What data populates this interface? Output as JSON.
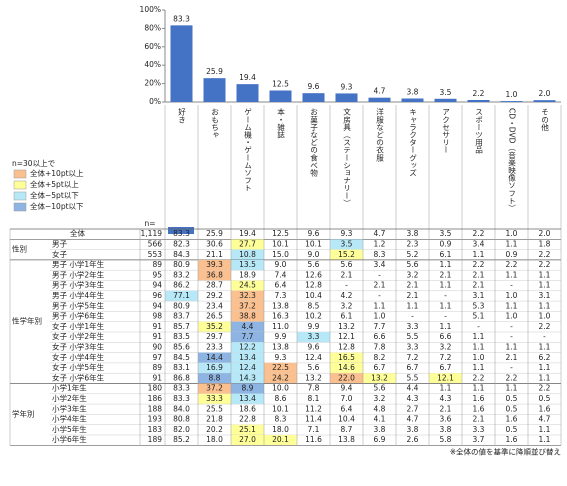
{
  "chart_data": {
    "type": "bar",
    "categories": [
      "好き",
      "おもちゃ",
      "ゲーム機・ゲームソフト",
      "本・雑誌",
      "お菓子などの食べ物",
      "文房具（ステーショナリー）",
      "洋服などの衣服",
      "キャラクターグッズ",
      "アクセサリー",
      "スポーツ用品",
      "CD・DVD（音楽映像ソフト）",
      "その他"
    ],
    "values": [
      83.3,
      25.9,
      19.4,
      12.5,
      9.6,
      9.3,
      4.7,
      3.8,
      3.5,
      2.2,
      1.0,
      2.0
    ],
    "value_labels": [
      "83.3",
      "25.9",
      "19.4",
      "12.5",
      "9.6",
      "9.3",
      "4.7",
      "3.8",
      "3.5",
      "2.2",
      "1.0",
      "2.0"
    ],
    "color": "#4472c4",
    "ylim": [
      0,
      100
    ],
    "yticks": [
      {
        "value": 0,
        "label": "0%"
      },
      {
        "value": 20,
        "label": "20%"
      },
      {
        "value": 40,
        "label": "40%"
      },
      {
        "value": 60,
        "label": "60%"
      },
      {
        "value": 80,
        "label": "80%"
      },
      {
        "value": 100,
        "label": "100%"
      }
    ]
  },
  "legend": {
    "title": "n=30以上で",
    "items": [
      {
        "label": "全体+10pt以上",
        "color": "#fac090"
      },
      {
        "label": "全体+5pt以上",
        "color": "#ffff99"
      },
      {
        "label": "全体−5pt以下",
        "color": "#b7e8f7"
      },
      {
        "label": "全体−10pt以下",
        "color": "#8db4e2"
      }
    ]
  },
  "table": {
    "n_header": "n=",
    "total": {
      "label": "全体",
      "n": "1,119",
      "values": [
        "83.3",
        "25.9",
        "19.4",
        "12.5",
        "9.6",
        "9.3",
        "4.7",
        "3.8",
        "3.5",
        "2.2",
        "1.0",
        "2.0"
      ]
    },
    "groups": [
      {
        "label": "性別",
        "rows": [
          {
            "label": "男子",
            "n": "566",
            "values": [
              "82.3",
              "30.6",
              "27.7",
              "10.1",
              "10.1",
              "3.5",
              "1.2",
              "2.3",
              "0.9",
              "3.4",
              "1.1",
              "1.8"
            ],
            "fills": {
              "2": "#ffff99",
              "5": "#b7e8f7"
            }
          },
          {
            "label": "女子",
            "n": "553",
            "values": [
              "84.3",
              "21.1",
              "10.8",
              "15.0",
              "9.0",
              "15.2",
              "8.3",
              "5.2",
              "6.1",
              "1.1",
              "0.9",
              "2.2"
            ],
            "fills": {
              "2": "#b7e8f7",
              "5": "#ffff99"
            }
          }
        ]
      },
      {
        "label": "性学年別",
        "rows": [
          {
            "label": "男子 小学1年生",
            "n": "89",
            "values": [
              "80.9",
              "39.3",
              "13.5",
              "9.0",
              "5.6",
              "5.6",
              "3.4",
              "5.6",
              "1.1",
              "2.2",
              "2.2",
              "2.2"
            ],
            "fills": {
              "1": "#fac090",
              "2": "#b7e8f7"
            }
          },
          {
            "label": "男子 小学2年生",
            "n": "95",
            "values": [
              "83.2",
              "36.8",
              "18.9",
              "7.4",
              "12.6",
              "2.1",
              "-",
              "3.2",
              "2.1",
              "2.1",
              "1.1",
              "1.1"
            ],
            "fills": {
              "1": "#fac090"
            }
          },
          {
            "label": "男子 小学3年生",
            "n": "94",
            "values": [
              "86.2",
              "28.7",
              "24.5",
              "6.4",
              "12.8",
              "-",
              "2.1",
              "2.1",
              "1.1",
              "2.1",
              "-",
              "1.1"
            ],
            "fills": {
              "2": "#ffff99"
            }
          },
          {
            "label": "男子 小学4年生",
            "n": "96",
            "values": [
              "77.1",
              "29.2",
              "32.3",
              "7.3",
              "10.4",
              "4.2",
              "-",
              "2.1",
              "-",
              "3.1",
              "1.0",
              "3.1"
            ],
            "fills": {
              "0": "#b7e8f7",
              "2": "#fac090"
            }
          },
          {
            "label": "男子 小学5年生",
            "n": "94",
            "values": [
              "80.9",
              "23.4",
              "37.2",
              "13.8",
              "8.5",
              "3.2",
              "1.1",
              "1.1",
              "1.1",
              "5.3",
              "1.1",
              "1.1"
            ],
            "fills": {
              "2": "#fac090"
            }
          },
          {
            "label": "男子 小学6年生",
            "n": "98",
            "values": [
              "83.7",
              "26.5",
              "38.8",
              "16.3",
              "10.2",
              "6.1",
              "1.0",
              "-",
              "-",
              "5.1",
              "1.0",
              "1.0"
            ],
            "fills": {
              "2": "#fac090"
            }
          },
          {
            "label": "女子 小学1年生",
            "n": "91",
            "values": [
              "85.7",
              "35.2",
              "4.4",
              "11.0",
              "9.9",
              "13.2",
              "7.7",
              "3.3",
              "1.1",
              "-",
              "-",
              "2.2"
            ],
            "fills": {
              "1": "#ffff99",
              "2": "#8db4e2"
            }
          },
          {
            "label": "女子 小学2年生",
            "n": "91",
            "values": [
              "83.5",
              "29.7",
              "7.7",
              "9.9",
              "3.3",
              "12.1",
              "6.6",
              "5.5",
              "6.6",
              "1.1",
              "-",
              "-"
            ],
            "fills": {
              "2": "#8db4e2",
              "4": "#b7e8f7"
            }
          },
          {
            "label": "女子 小学3年生",
            "n": "90",
            "values": [
              "85.6",
              "23.3",
              "12.2",
              "13.8",
              "9.6",
              "12.8",
              "7.8",
              "3.3",
              "3.2",
              "1.1",
              "1.1",
              "1.1"
            ],
            "fills": {
              "2": "#b7e8f7"
            }
          },
          {
            "label": "女子 小学4年生",
            "n": "97",
            "values": [
              "84.5",
              "14.4",
              "13.4",
              "9.3",
              "12.4",
              "16.5",
              "8.2",
              "7.2",
              "7.2",
              "1.0",
              "2.1",
              "6.2"
            ],
            "fills": {
              "1": "#8db4e2",
              "2": "#b7e8f7",
              "5": "#ffff99"
            }
          },
          {
            "label": "女子 小学5年生",
            "n": "89",
            "values": [
              "83.1",
              "16.9",
              "12.4",
              "22.5",
              "5.6",
              "14.6",
              "6.7",
              "6.7",
              "6.7",
              "1.1",
              "-",
              "1.1"
            ],
            "fills": {
              "1": "#b7e8f7",
              "2": "#b7e8f7",
              "3": "#fac090",
              "5": "#ffff99"
            }
          },
          {
            "label": "女子 小学6年生",
            "n": "91",
            "values": [
              "86.8",
              "8.8",
              "14.3",
              "24.2",
              "13.2",
              "22.0",
              "13.2",
              "5.5",
              "12.1",
              "2.2",
              "2.2",
              "1.1"
            ],
            "fills": {
              "1": "#8db4e2",
              "2": "#b7e8f7",
              "3": "#fac090",
              "5": "#fac090",
              "6": "#ffff99",
              "8": "#ffff99"
            }
          }
        ]
      },
      {
        "label": "学年別",
        "rows": [
          {
            "label": "小学1年生",
            "n": "180",
            "values": [
              "83.3",
              "37.2",
              "8.9",
              "10.0",
              "7.8",
              "9.4",
              "5.6",
              "4.4",
              "1.1",
              "1.1",
              "1.1",
              "2.2"
            ],
            "fills": {
              "1": "#fac090",
              "2": "#8db4e2"
            }
          },
          {
            "label": "小学2年生",
            "n": "186",
            "values": [
              "83.3",
              "33.3",
              "13.4",
              "8.6",
              "8.1",
              "7.0",
              "3.2",
              "4.3",
              "4.3",
              "1.6",
              "0.5",
              "0.5"
            ],
            "fills": {
              "1": "#ffff99",
              "2": "#b7e8f7"
            }
          },
          {
            "label": "小学3年生",
            "n": "188",
            "values": [
              "84.0",
              "25.5",
              "18.6",
              "10.1",
              "11.2",
              "6.4",
              "4.8",
              "2.7",
              "2.1",
              "1.6",
              "0.5",
              "1.6"
            ]
          },
          {
            "label": "小学4年生",
            "n": "193",
            "values": [
              "80.8",
              "21.8",
              "22.8",
              "8.3",
              "11.4",
              "10.4",
              "4.1",
              "4.7",
              "3.6",
              "2.1",
              "1.6",
              "4.7"
            ]
          },
          {
            "label": "小学5年生",
            "n": "183",
            "values": [
              "82.0",
              "20.2",
              "25.1",
              "18.0",
              "7.1",
              "8.7",
              "3.8",
              "3.8",
              "3.8",
              "3.3",
              "0.5",
              "1.1"
            ],
            "fills": {
              "2": "#ffff99"
            }
          },
          {
            "label": "小学6年生",
            "n": "189",
            "values": [
              "85.2",
              "18.0",
              "27.0",
              "20.1",
              "11.6",
              "13.8",
              "6.9",
              "2.6",
              "5.8",
              "3.7",
              "1.6",
              "1.1"
            ],
            "fills": {
              "2": "#ffff99",
              "3": "#ffff99"
            }
          }
        ]
      }
    ]
  },
  "footnote": "※全体の値を基準に降順並び替え"
}
